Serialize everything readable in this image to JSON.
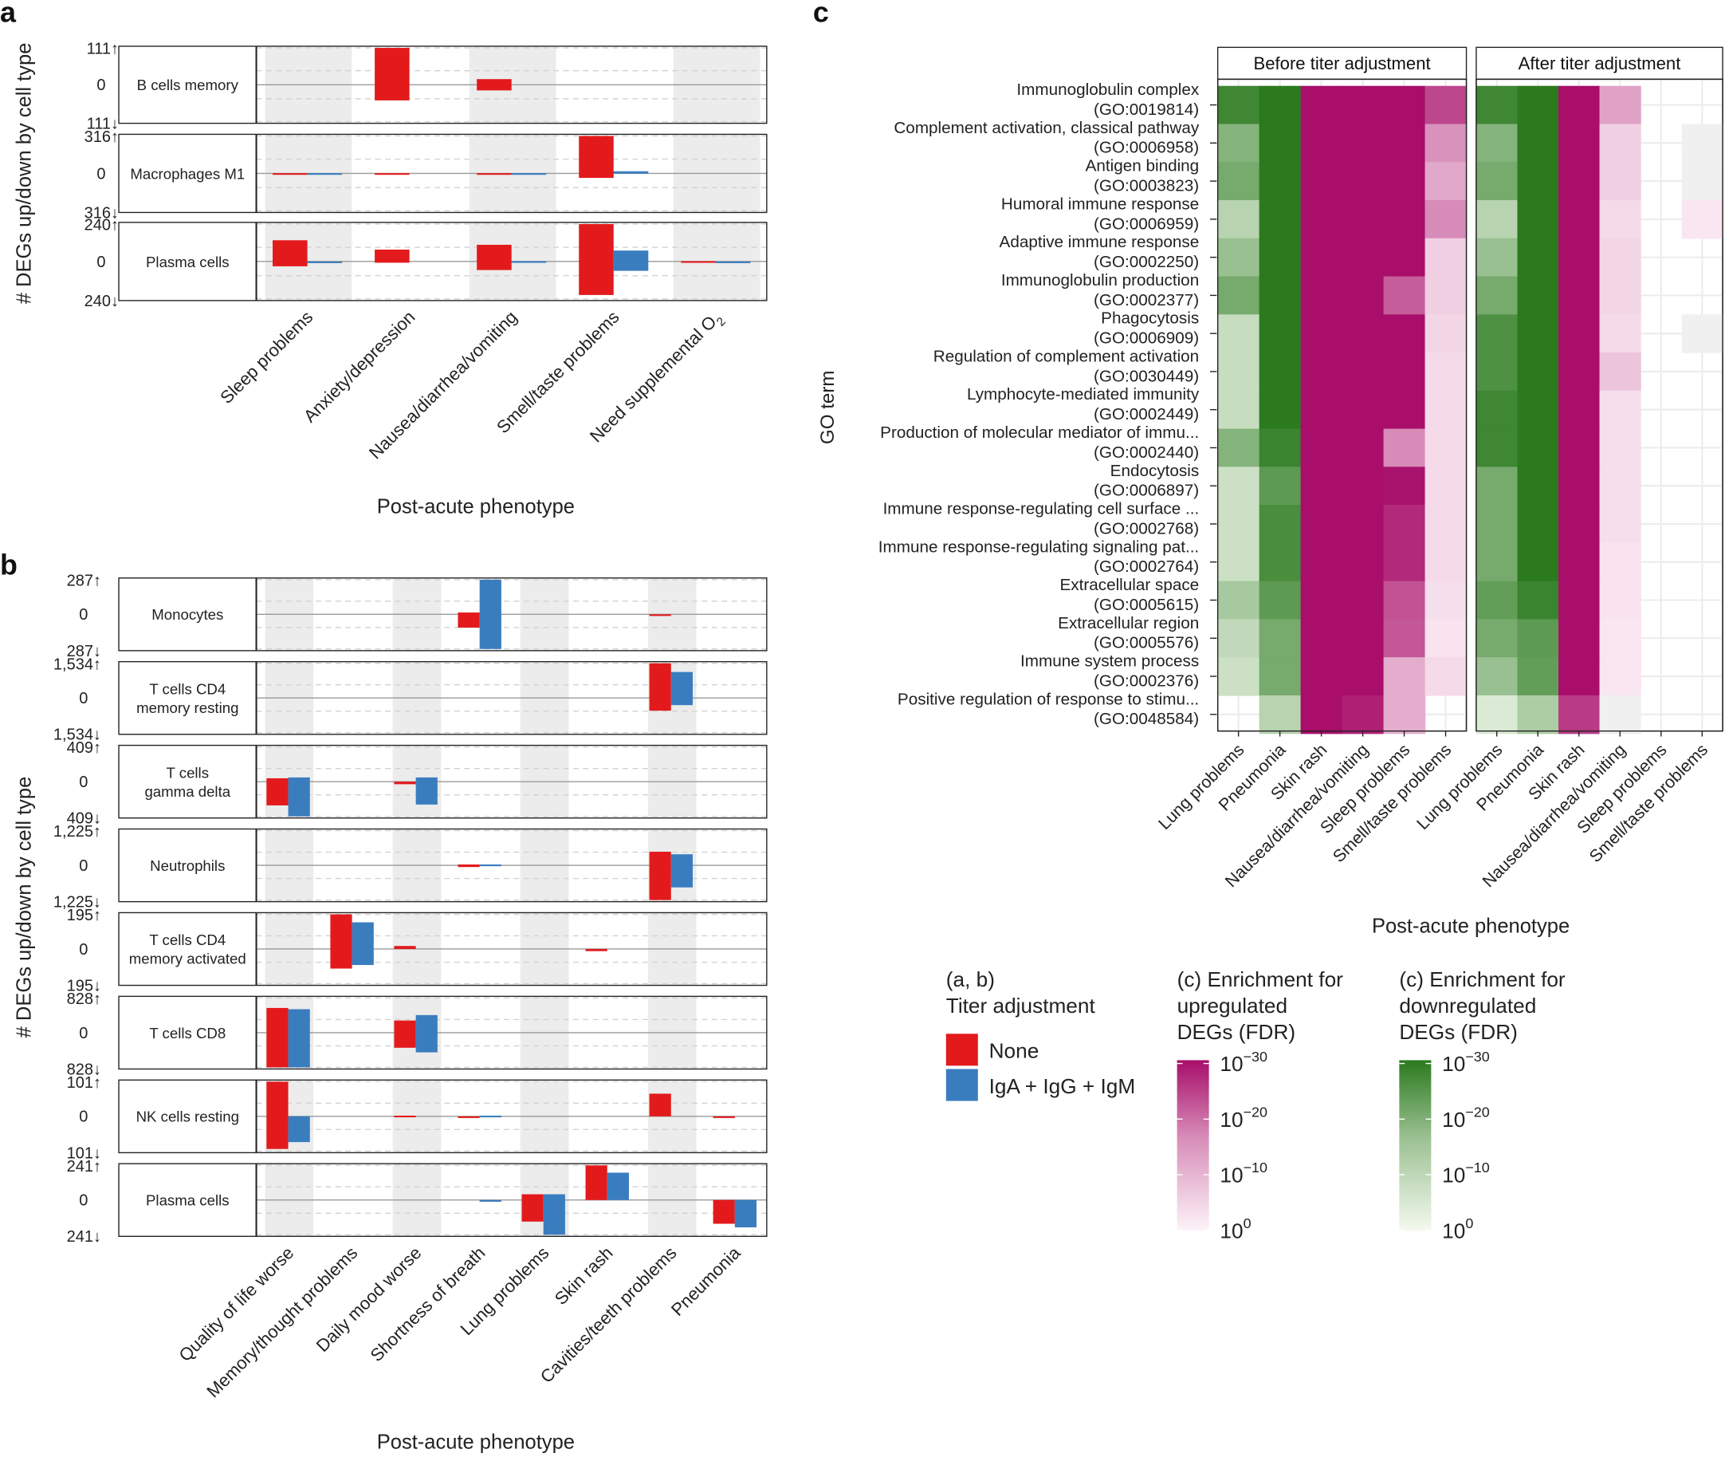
{
  "chart_data": [
    {
      "panel": "a",
      "type": "bar",
      "xlabel": "Post-acute phenotype",
      "ylabel": "# DEGs up/down by cell type",
      "categories": [
        "Sleep problems",
        "Anxiety/depression",
        "Nausea/diarrhea/vomiting",
        "Smell/taste problems",
        "Need supplemental O"
      ],
      "category_subscripts": [
        "",
        "",
        "",
        "",
        "2"
      ],
      "legend_title": "(a, b)\nTiter adjustment",
      "series": [
        {
          "name": "None",
          "color": "#e31a1c"
        },
        {
          "name": "IgA + IgG + IgM",
          "color": "#3a7dbf"
        }
      ],
      "facets": [
        {
          "name": "B cells memory",
          "max_label": "111",
          "min_label": "111",
          "max": 111,
          "none_up": [
            0,
            111,
            17,
            0,
            0
          ],
          "none_down": [
            0,
            47,
            17,
            0,
            0
          ],
          "adj_up": [
            0,
            0,
            0,
            0,
            0
          ],
          "adj_down": [
            0,
            0,
            0,
            0,
            0
          ]
        },
        {
          "name": "Macrophages M1",
          "max_label": "316",
          "min_label": "316",
          "max": 316,
          "none_up": [
            2,
            2,
            2,
            316,
            0
          ],
          "none_down": [
            2,
            2,
            2,
            38,
            0
          ],
          "adj_up": [
            2,
            0,
            2,
            18,
            0
          ],
          "adj_down": [
            2,
            0,
            2,
            2,
            0
          ]
        },
        {
          "name": "Plasma cells",
          "max_label": "240",
          "min_label": "240",
          "max": 240,
          "none_up": [
            136,
            76,
            107,
            240,
            2
          ],
          "none_down": [
            31,
            8,
            55,
            215,
            0
          ],
          "adj_up": [
            0,
            0,
            2,
            70,
            0
          ],
          "adj_down": [
            2,
            0,
            2,
            60,
            2
          ]
        }
      ]
    },
    {
      "panel": "b",
      "type": "bar",
      "xlabel": "Post-acute phenotype",
      "ylabel": "# DEGs up/down by cell type",
      "categories": [
        "Quality of life worse",
        "Memory/thought problems",
        "Daily mood worse",
        "Shortness of breath",
        "Lung problems",
        "Skin rash",
        "Cavities/teeth problems",
        "Pneumonia"
      ],
      "facets": [
        {
          "name": "Monocytes",
          "max_label": "287",
          "min_label": "287",
          "max": 287,
          "none_up": [
            0,
            0,
            0,
            15,
            0,
            0,
            0,
            0
          ],
          "none_down": [
            0,
            0,
            0,
            110,
            0,
            0,
            2,
            0
          ],
          "adj_up": [
            0,
            0,
            0,
            287,
            0,
            0,
            0,
            0
          ],
          "adj_down": [
            0,
            0,
            0,
            287,
            0,
            0,
            0,
            0
          ]
        },
        {
          "name": "T cells CD4\nmemory resting",
          "max_label": "1,534",
          "min_label": "1,534",
          "max": 1534,
          "none_up": [
            0,
            0,
            0,
            0,
            0,
            0,
            1534,
            0
          ],
          "none_down": [
            0,
            0,
            0,
            0,
            0,
            0,
            560,
            0
          ],
          "adj_up": [
            0,
            0,
            0,
            0,
            0,
            0,
            1150,
            0
          ],
          "adj_down": [
            0,
            0,
            0,
            0,
            0,
            0,
            315,
            0
          ]
        },
        {
          "name": "T cells\ngamma delta",
          "max_label": "409",
          "min_label": "409",
          "max": 409,
          "none_up": [
            40,
            0,
            0,
            0,
            0,
            0,
            0,
            0
          ],
          "none_down": [
            280,
            0,
            30,
            0,
            0,
            0,
            0,
            0
          ],
          "adj_up": [
            50,
            0,
            50,
            0,
            0,
            0,
            0,
            0
          ],
          "adj_down": [
            409,
            0,
            270,
            0,
            0,
            0,
            0,
            0
          ]
        },
        {
          "name": "Neutrophils",
          "max_label": "1,225",
          "min_label": "1,225",
          "max": 1225,
          "none_up": [
            0,
            0,
            0,
            30,
            0,
            0,
            480,
            0
          ],
          "none_down": [
            0,
            0,
            0,
            60,
            0,
            0,
            1225,
            0
          ],
          "adj_up": [
            0,
            0,
            0,
            30,
            0,
            0,
            390,
            0
          ],
          "adj_down": [
            0,
            0,
            0,
            30,
            0,
            0,
            780,
            0
          ]
        },
        {
          "name": "T cells CD4\nmemory activated",
          "max_label": "195",
          "min_label": "195",
          "max": 195,
          "none_up": [
            0,
            195,
            17,
            0,
            0,
            0,
            0,
            0
          ],
          "none_down": [
            0,
            110,
            0,
            0,
            0,
            12,
            0,
            0
          ],
          "adj_up": [
            0,
            150,
            0,
            0,
            0,
            0,
            0,
            0
          ],
          "adj_down": [
            0,
            90,
            0,
            0,
            0,
            0,
            0,
            0
          ]
        },
        {
          "name": "T cells CD8",
          "max_label": "828",
          "min_label": "828",
          "max": 828,
          "none_up": [
            590,
            0,
            290,
            0,
            0,
            0,
            0,
            0
          ],
          "none_down": [
            828,
            0,
            360,
            0,
            0,
            0,
            0,
            0
          ],
          "adj_up": [
            560,
            0,
            420,
            0,
            0,
            0,
            0,
            0
          ],
          "adj_down": [
            828,
            0,
            470,
            0,
            0,
            0,
            0,
            0
          ]
        },
        {
          "name": "NK cells resting",
          "max_label": "101",
          "min_label": "101",
          "max": 101,
          "none_up": [
            101,
            0,
            2,
            0,
            0,
            0,
            66,
            0
          ],
          "none_down": [
            95,
            0,
            0,
            4,
            0,
            0,
            0,
            4
          ],
          "adj_up": [
            0,
            0,
            0,
            2,
            0,
            0,
            0,
            0
          ],
          "adj_down": [
            75,
            0,
            0,
            0,
            0,
            0,
            0,
            0
          ]
        },
        {
          "name": "Plasma cells",
          "max_label": "241",
          "min_label": "241",
          "max": 241,
          "none_up": [
            0,
            0,
            0,
            0,
            40,
            241,
            0,
            0
          ],
          "none_down": [
            0,
            0,
            0,
            0,
            150,
            0,
            0,
            165
          ],
          "adj_up": [
            0,
            0,
            0,
            0,
            40,
            190,
            0,
            0
          ],
          "adj_down": [
            0,
            0,
            0,
            12,
            241,
            0,
            0,
            190
          ]
        }
      ]
    },
    {
      "panel": "c",
      "type": "heatmap",
      "xlabel": "Post-acute phenotype",
      "ylabel": "GO term",
      "facets": [
        "Before titer adjustment",
        "After titer adjustment"
      ],
      "columns": [
        "Lung problems",
        "Pneumonia",
        "Skin rash",
        "Nausea/diarrhea/vomiting",
        "Sleep problems",
        "Smell/taste problems"
      ],
      "rows": [
        {
          "name": "Immunoglobulin complex",
          "id": "(GO:0019814)"
        },
        {
          "name": "Complement activation, classical pathway",
          "id": "(GO:0006958)"
        },
        {
          "name": "Antigen binding",
          "id": "(GO:0003823)"
        },
        {
          "name": "Humoral immune response",
          "id": "(GO:0006959)"
        },
        {
          "name": "Adaptive immune response",
          "id": "(GO:0002250)"
        },
        {
          "name": "Immunoglobulin production",
          "id": "(GO:0002377)"
        },
        {
          "name": "Phagocytosis",
          "id": "(GO:0006909)"
        },
        {
          "name": "Regulation of complement activation",
          "id": "(GO:0030449)"
        },
        {
          "name": "Lymphocyte-mediated immunity",
          "id": "(GO:0002449)"
        },
        {
          "name": "Production of molecular mediator of immu...",
          "id": "(GO:0002440)"
        },
        {
          "name": "Endocytosis",
          "id": "(GO:0006897)"
        },
        {
          "name": "Immune response-regulating cell surface ...",
          "id": "(GO:0002768)"
        },
        {
          "name": "Immune response-regulating signaling pat...",
          "id": "(GO:0002764)"
        },
        {
          "name": "Extracellular space",
          "id": "(GO:0005615)"
        },
        {
          "name": "Extracellular region",
          "id": "(GO:0005576)"
        },
        {
          "name": "Immune system process",
          "id": "(GO:0002376)"
        },
        {
          "name": "Positive regulation of response to stimu...",
          "id": "(GO:0048584)"
        }
      ],
      "value_note": "cell values: g = green (downregulated) intensity 0..1, p = pink (upregulated) intensity 0..1",
      "before": [
        [
          "g0.9",
          "g1.0",
          "p1.0",
          "p1.0",
          "p1.0",
          "p0.75"
        ],
        [
          "g0.55",
          "g1.0",
          "p1.0",
          "p1.0",
          "p1.0",
          "p0.42"
        ],
        [
          "g0.62",
          "g1.0",
          "p1.0",
          "p1.0",
          "p1.0",
          "p0.32"
        ],
        [
          "g0.3",
          "g1.0",
          "p1.0",
          "p1.0",
          "p1.0",
          "p0.45"
        ],
        [
          "g0.45",
          "g1.0",
          "p1.0",
          "p1.0",
          "p1.0",
          "p0.15"
        ],
        [
          "g0.62",
          "g1.0",
          "p1.0",
          "p1.0",
          "p0.65",
          "p0.15"
        ],
        [
          "g0.22",
          "g1.0",
          "p1.0",
          "p1.0",
          "p1.0",
          "p0.12"
        ],
        [
          "g0.22",
          "g1.0",
          "p1.0",
          "p1.0",
          "p1.0",
          "p0.1"
        ],
        [
          "g0.22",
          "g1.0",
          "p1.0",
          "p1.0",
          "p1.0",
          "p0.1"
        ],
        [
          "g0.55",
          "g0.92",
          "p1.0",
          "p1.0",
          "p0.45",
          "p0.1"
        ],
        [
          "g0.2",
          "g0.75",
          "p1.0",
          "p1.0",
          "p0.98",
          "p0.1"
        ],
        [
          "g0.2",
          "g0.85",
          "p1.0",
          "p1.0",
          "p0.88",
          "p0.1"
        ],
        [
          "g0.2",
          "g0.85",
          "p1.0",
          "p1.0",
          "p0.88",
          "p0.1"
        ],
        [
          "g0.38",
          "g0.75",
          "p1.0",
          "p1.0",
          "p0.7",
          "p0.08"
        ],
        [
          "g0.25",
          "g0.62",
          "p1.0",
          "p1.0",
          "p0.68",
          "p0.06"
        ],
        [
          "g0.2",
          "g0.62",
          "p1.0",
          "p1.0",
          "p0.3",
          "p0.1"
        ],
        [
          "",
          "g0.3",
          "p1.0",
          "p0.92",
          "p0.3",
          ""
        ]
      ],
      "after": [
        [
          "g0.9",
          "g1.0",
          "p1.0",
          "p0.35",
          "",
          ""
        ],
        [
          "g0.55",
          "g1.0",
          "p1.0",
          "p0.15",
          "",
          "gray"
        ],
        [
          "g0.62",
          "g1.0",
          "p1.0",
          "p0.15",
          "",
          "gray"
        ],
        [
          "g0.3",
          "g1.0",
          "p1.0",
          "p0.1",
          "",
          "p0.05"
        ],
        [
          "g0.45",
          "g1.0",
          "p1.0",
          "p0.12",
          "",
          ""
        ],
        [
          "g0.62",
          "g1.0",
          "p1.0",
          "p0.12",
          "",
          ""
        ],
        [
          "g0.82",
          "g1.0",
          "p1.0",
          "p0.1",
          "",
          "gray"
        ],
        [
          "g0.82",
          "g1.0",
          "p1.0",
          "p0.2",
          "",
          ""
        ],
        [
          "g0.9",
          "g1.0",
          "p1.0",
          "p0.08",
          "",
          ""
        ],
        [
          "g0.9",
          "g1.0",
          "p1.0",
          "p0.08",
          "",
          ""
        ],
        [
          "g0.62",
          "g1.0",
          "p1.0",
          "p0.08",
          "",
          ""
        ],
        [
          "g0.62",
          "g1.0",
          "p1.0",
          "p0.08",
          "",
          ""
        ],
        [
          "g0.62",
          "g1.0",
          "p1.0",
          "p0.06",
          "",
          ""
        ],
        [
          "g0.72",
          "g0.92",
          "p1.0",
          "p0.06",
          "",
          ""
        ],
        [
          "g0.62",
          "g0.75",
          "p1.0",
          "p0.05",
          "",
          ""
        ],
        [
          "g0.45",
          "g0.72",
          "p1.0",
          "p0.05",
          "",
          ""
        ],
        [
          "g0.12",
          "g0.35",
          "p0.8",
          "gray",
          "",
          ""
        ]
      ],
      "colors": {
        "pink_max": "#a80e6a",
        "green_max": "#2b7a1e"
      },
      "legend_up_title": "(c) Enrichment for\nupregulated\nDEGs (FDR)",
      "legend_down_title": "(c) Enrichment for\ndownregulated\nDEGs (FDR)",
      "legend_ticks": [
        "30",
        "20",
        "10",
        "0"
      ],
      "legend_tick_base": "10",
      "legend_tick_prefix": "−"
    }
  ],
  "panel_labels": {
    "a": "a",
    "b": "b",
    "c": "c"
  },
  "up_arrow": "↑",
  "down_arrow": "↓",
  "zero_label": "0"
}
